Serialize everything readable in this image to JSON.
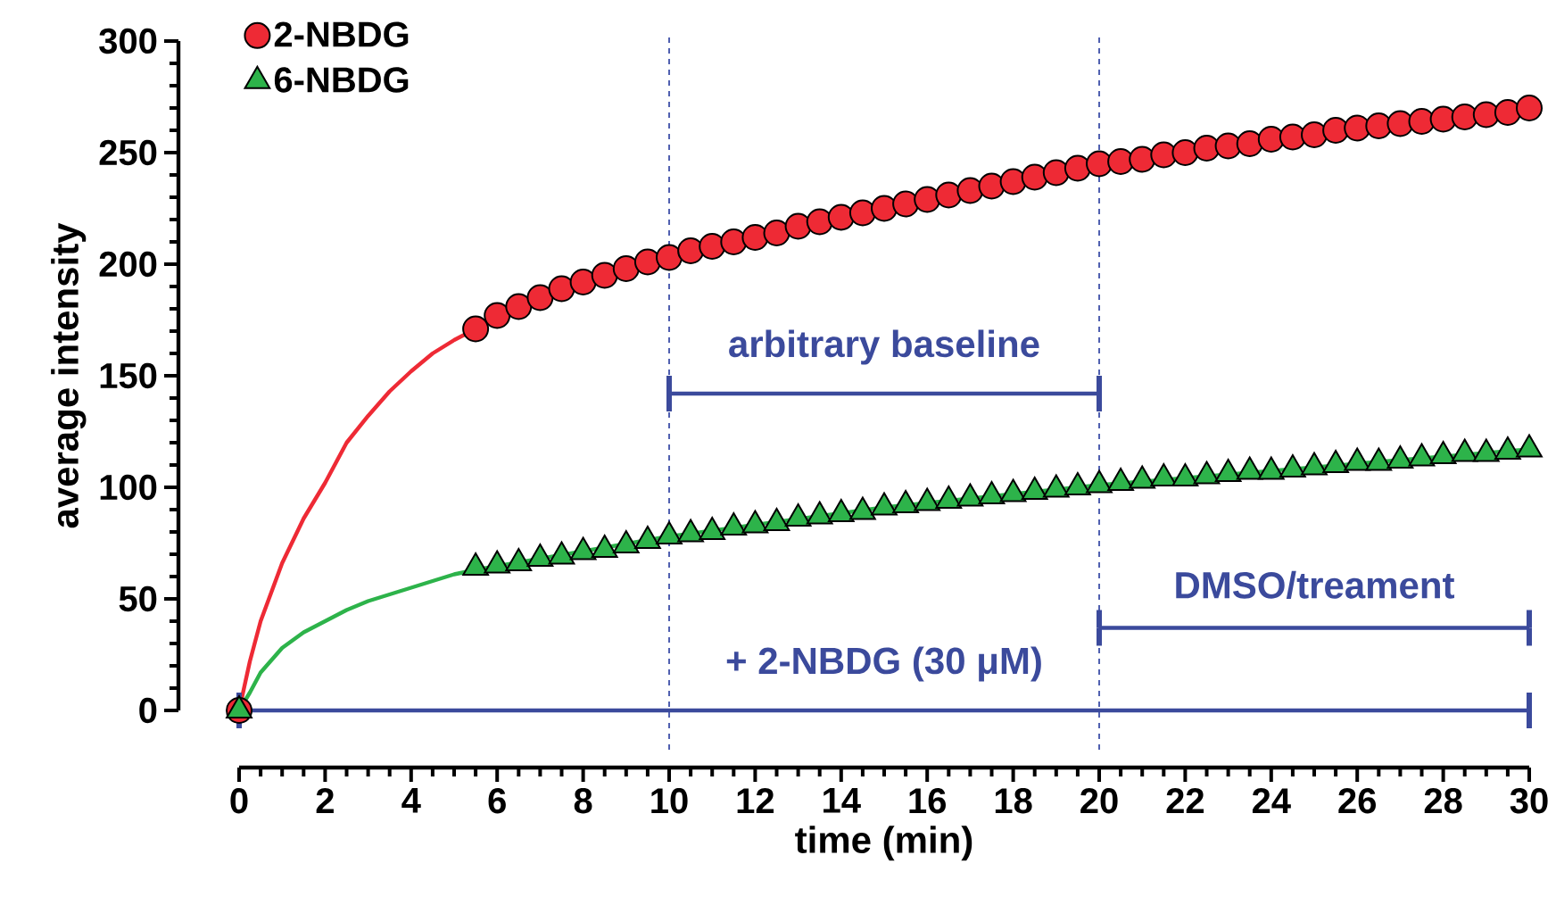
{
  "chart_data": {
    "type": "scatter",
    "xlabel": "time (min)",
    "ylabel": "average intensity",
    "xlim": [
      0,
      30
    ],
    "ylim": [
      0,
      300
    ],
    "xticks": [
      0,
      2,
      4,
      6,
      8,
      10,
      12,
      14,
      16,
      18,
      20,
      22,
      24,
      26,
      28,
      30
    ],
    "yticks": [
      0,
      50,
      100,
      150,
      200,
      250,
      300
    ],
    "legend": "top left",
    "grid": false,
    "series": [
      {
        "type": "line",
        "marker": "none",
        "color": "#ee2a35",
        "x": [
          0,
          0.25,
          0.5,
          1,
          1.5,
          2,
          2.5,
          3,
          3.5,
          4,
          4.5,
          5,
          5.5
        ],
        "values": [
          0,
          22,
          40,
          66,
          86,
          102,
          120,
          132,
          143,
          152,
          160,
          166,
          171
        ]
      },
      {
        "type": "line",
        "marker": "none",
        "color": "#2db34a",
        "x": [
          0,
          0.25,
          0.5,
          1,
          1.5,
          2,
          2.5,
          3,
          3.5,
          4,
          4.5,
          5,
          5.5,
          10,
          15,
          20,
          25,
          30
        ],
        "values": [
          0,
          8,
          17,
          28,
          35,
          40,
          45,
          49,
          52,
          55,
          58,
          61,
          63,
          78,
          91,
          101,
          109,
          117
        ]
      },
      {
        "name": "2-NBDG",
        "marker": "circle",
        "color": "#ee2a35",
        "x": [
          0,
          5.5,
          6,
          6.5,
          7,
          7.5,
          8,
          8.5,
          9,
          9.5,
          10,
          10.5,
          11,
          11.5,
          12,
          12.5,
          13,
          13.5,
          14,
          14.5,
          15,
          15.5,
          16,
          16.5,
          17,
          17.5,
          18,
          18.5,
          19,
          19.5,
          20,
          20.5,
          21,
          21.5,
          22,
          22.5,
          23,
          23.5,
          24,
          24.5,
          25,
          25.5,
          26,
          26.5,
          27,
          27.5,
          28,
          28.5,
          29,
          29.5,
          30
        ],
        "values": [
          0,
          171,
          177,
          181,
          185,
          189,
          192,
          195,
          198,
          201,
          203,
          206,
          208,
          210,
          212,
          214,
          217,
          219,
          221,
          223,
          225,
          227,
          229,
          231,
          233,
          235,
          237,
          239,
          241,
          243,
          245,
          246,
          247,
          249,
          250,
          252,
          253,
          254,
          256,
          257,
          258,
          260,
          261,
          262,
          263,
          264,
          265,
          266,
          267,
          268,
          270
        ]
      },
      {
        "name": "6-NBDG",
        "marker": "triangle",
        "color": "#2db34a",
        "x": [
          0,
          5.5,
          6,
          6.5,
          7,
          7.5,
          8,
          8.5,
          9,
          9.5,
          10,
          10.5,
          11,
          11.5,
          12,
          12.5,
          13,
          13.5,
          14,
          14.5,
          15,
          15.5,
          16,
          16.5,
          17,
          17.5,
          18,
          18.5,
          19,
          19.5,
          20,
          20.5,
          21,
          21.5,
          22,
          22.5,
          23,
          23.5,
          24,
          24.5,
          25,
          25.5,
          26,
          26.5,
          27,
          27.5,
          28,
          28.5,
          29,
          29.5,
          30
        ],
        "values": [
          0,
          64,
          65,
          66,
          68,
          69,
          71,
          72,
          74,
          76,
          78,
          79,
          80,
          82,
          83,
          84,
          86,
          87,
          88,
          89,
          91,
          92,
          93,
          94,
          95,
          96,
          97,
          98,
          99,
          100,
          101,
          102,
          103,
          104,
          104,
          105,
          106,
          107,
          107,
          108,
          109,
          110,
          111,
          111,
          112,
          113,
          114,
          115,
          115,
          116,
          117
        ]
      },
      {
        "type": "line",
        "marker": "none",
        "color": "#3b4a9c",
        "x": [
          10,
          20
        ],
        "values": [
          142,
          142
        ],
        "errors": [
          8,
          8
        ]
      },
      {
        "type": "line",
        "marker": "none",
        "color": "#3b4a9c",
        "x": [
          20,
          30
        ],
        "values": [
          37,
          37
        ],
        "errors": [
          8,
          8
        ]
      },
      {
        "type": "line",
        "marker": "none",
        "color": "#3b4a9c",
        "x": [
          0,
          30
        ],
        "values": [
          0,
          0
        ],
        "errors": [
          8,
          8
        ]
      }
    ],
    "ref_lines": [
      {
        "axis": "x",
        "value": 10,
        "color": "#5060b0",
        "line_style": "dashed"
      },
      {
        "axis": "x",
        "value": 20,
        "color": "#5060b0",
        "line_style": "dashed"
      }
    ],
    "annotations": [
      "arbitrary baseline",
      "DMSO/treament",
      "+ 2-NBDG (30 μM)"
    ]
  }
}
